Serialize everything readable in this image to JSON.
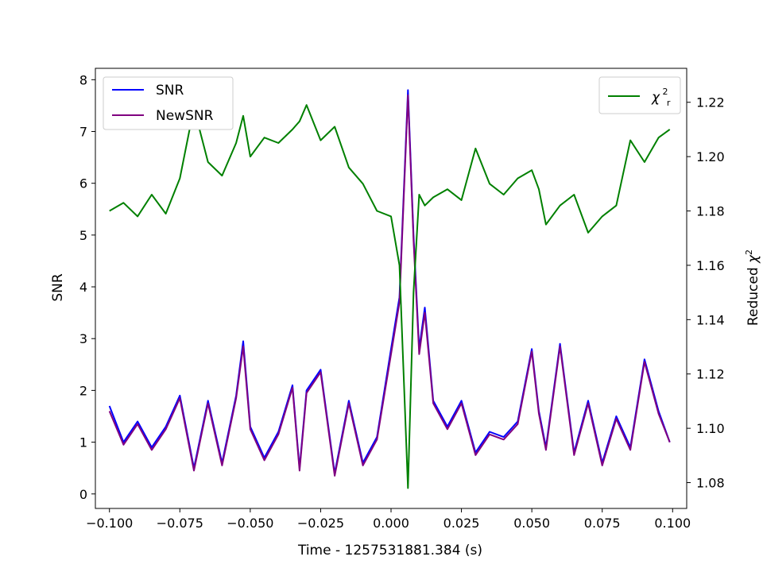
{
  "chart_data": {
    "type": "line",
    "xlabel": "Time - 1257531881.384 (s)",
    "ylabel": "SNR",
    "y2label_prefix": "Reduced ",
    "y2label_symbol": "χ",
    "y2label_sup": "2",
    "xlim": [
      -0.105,
      0.105
    ],
    "ylim": [
      -0.28,
      8.22
    ],
    "y2lim": [
      1.0705,
      1.2325
    ],
    "xticks": [
      -0.1,
      -0.075,
      -0.05,
      -0.025,
      0.0,
      0.025,
      0.05,
      0.075,
      0.1
    ],
    "xtick_labels": [
      "−0.100",
      "−0.075",
      "−0.050",
      "−0.025",
      "0.000",
      "0.025",
      "0.050",
      "0.075",
      "0.100"
    ],
    "yticks": [
      0,
      1,
      2,
      3,
      4,
      5,
      6,
      7,
      8
    ],
    "ytick_labels": [
      "0",
      "1",
      "2",
      "3",
      "4",
      "5",
      "6",
      "7",
      "8"
    ],
    "y2ticks": [
      1.08,
      1.1,
      1.12,
      1.14,
      1.16,
      1.18,
      1.2,
      1.22
    ],
    "y2tick_labels": [
      "1.08",
      "1.10",
      "1.12",
      "1.14",
      "1.16",
      "1.18",
      "1.20",
      "1.22"
    ],
    "grid": false,
    "legend_left_position": "upper-left",
    "legend_right_position": "upper-right",
    "legend_right_symbol": "χ",
    "legend_right_sup": "2",
    "legend_right_sub": "r",
    "x": [
      -0.1,
      -0.095,
      -0.09,
      -0.085,
      -0.08,
      -0.075,
      -0.07,
      -0.065,
      -0.06,
      -0.055,
      -0.0525,
      -0.05,
      -0.045,
      -0.04,
      -0.035,
      -0.0325,
      -0.03,
      -0.025,
      -0.02,
      -0.015,
      -0.01,
      -0.005,
      0.0,
      0.003,
      0.006,
      0.008,
      0.01,
      0.012,
      0.015,
      0.02,
      0.025,
      0.03,
      0.035,
      0.04,
      0.045,
      0.05,
      0.0525,
      0.055,
      0.06,
      0.065,
      0.07,
      0.075,
      0.08,
      0.085,
      0.09,
      0.095,
      0.099
    ],
    "series": [
      {
        "name": "SNR",
        "axis": "left",
        "color": "#0000ff",
        "values": [
          1.7,
          1.0,
          1.4,
          0.9,
          1.3,
          1.9,
          0.5,
          1.8,
          0.6,
          1.9,
          2.95,
          1.3,
          0.7,
          1.2,
          2.1,
          0.5,
          2.0,
          2.4,
          0.4,
          1.8,
          0.6,
          1.1,
          2.8,
          3.8,
          7.8,
          5.0,
          2.8,
          3.6,
          1.8,
          1.3,
          1.8,
          0.8,
          1.2,
          1.1,
          1.4,
          2.8,
          1.6,
          0.9,
          2.9,
          0.8,
          1.8,
          0.6,
          1.5,
          0.9,
          2.6,
          1.6,
          1.0
        ]
      },
      {
        "name": "NewSNR",
        "axis": "left",
        "color": "#800080",
        "values": [
          1.6,
          0.95,
          1.35,
          0.85,
          1.25,
          1.85,
          0.45,
          1.75,
          0.55,
          1.85,
          2.85,
          1.25,
          0.65,
          1.15,
          2.05,
          0.45,
          1.95,
          2.35,
          0.35,
          1.75,
          0.55,
          1.05,
          2.7,
          3.7,
          7.7,
          4.9,
          2.7,
          3.5,
          1.75,
          1.25,
          1.75,
          0.75,
          1.15,
          1.05,
          1.35,
          2.75,
          1.55,
          0.85,
          2.85,
          0.75,
          1.75,
          0.55,
          1.45,
          0.85,
          2.55,
          1.55,
          1.0
        ]
      },
      {
        "name": "χ²_r",
        "axis": "right",
        "color": "#008000",
        "values": [
          1.18,
          1.183,
          1.178,
          1.186,
          1.179,
          1.192,
          1.218,
          1.198,
          1.193,
          1.205,
          1.215,
          1.2,
          1.207,
          1.205,
          1.21,
          1.213,
          1.219,
          1.206,
          1.211,
          1.196,
          1.19,
          1.18,
          1.178,
          1.16,
          1.078,
          1.15,
          1.186,
          1.182,
          1.185,
          1.188,
          1.184,
          1.203,
          1.19,
          1.186,
          1.192,
          1.195,
          1.188,
          1.175,
          1.182,
          1.186,
          1.172,
          1.178,
          1.182,
          1.206,
          1.198,
          1.207,
          1.21
        ]
      }
    ]
  }
}
